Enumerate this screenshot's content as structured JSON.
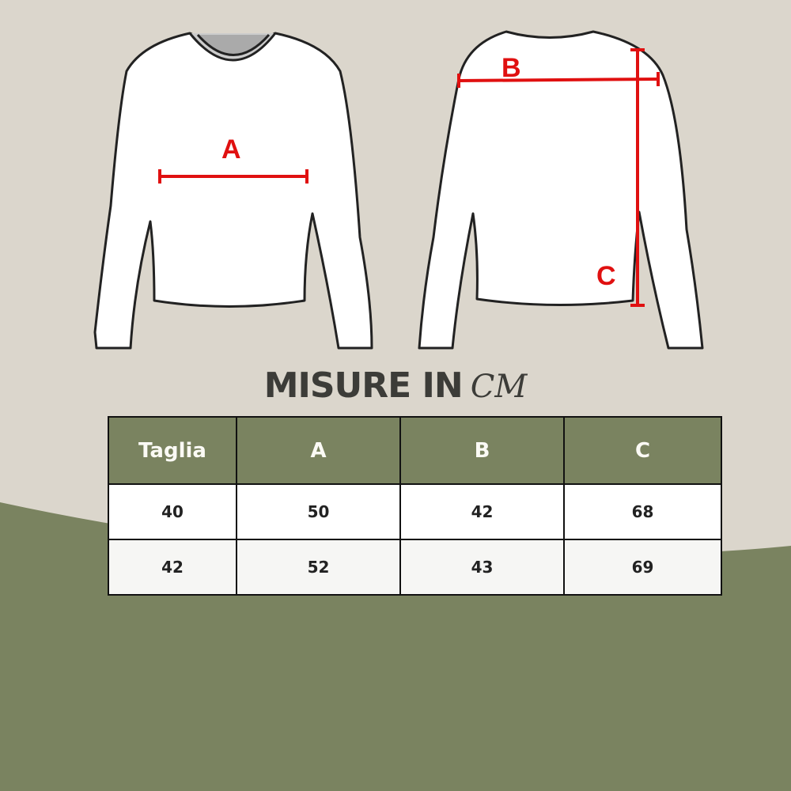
{
  "diagram": {
    "labels": {
      "a": "A",
      "b": "B",
      "c": "C"
    },
    "colors": {
      "background": "#dbd6cc",
      "green": "#7a8360",
      "measure_line": "#e01010"
    }
  },
  "title": {
    "main": "MISURE IN",
    "unit": "CM"
  },
  "table": {
    "headers": [
      "Taglia",
      "A",
      "B",
      "C"
    ],
    "rows": [
      [
        "40",
        "50",
        "42",
        "68"
      ],
      [
        "42",
        "52",
        "43",
        "69"
      ]
    ]
  }
}
